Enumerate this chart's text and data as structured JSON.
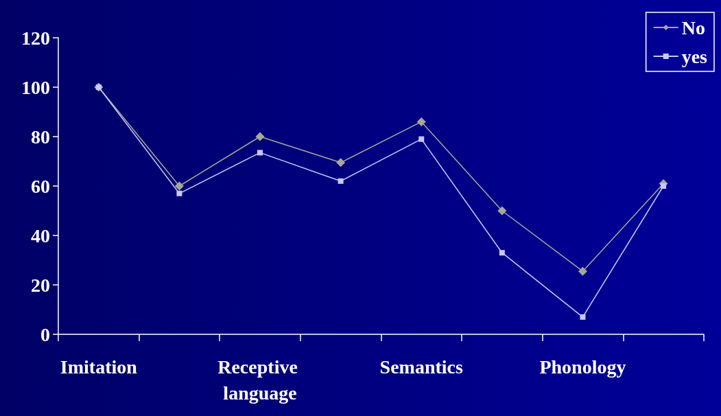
{
  "chart_data": {
    "type": "line",
    "categories": [
      "Imitation",
      null,
      "Receptive language",
      null,
      "Semantics",
      null,
      "Phonology",
      null
    ],
    "series": [
      {
        "name": "No",
        "color": "#a8a898",
        "marker": "diamond",
        "values": [
          100,
          60,
          80,
          69.5,
          86,
          50,
          25.5,
          61
        ]
      },
      {
        "name": "yes",
        "color": "#c8c8ff",
        "marker": "square",
        "values": [
          100,
          57,
          73.5,
          62,
          79,
          33,
          7,
          60
        ]
      }
    ],
    "ylim": [
      0,
      120
    ],
    "yticks": [
      0,
      20,
      40,
      60,
      80,
      100,
      120
    ],
    "grid": false,
    "legend": "top right",
    "line_style": "solid"
  }
}
